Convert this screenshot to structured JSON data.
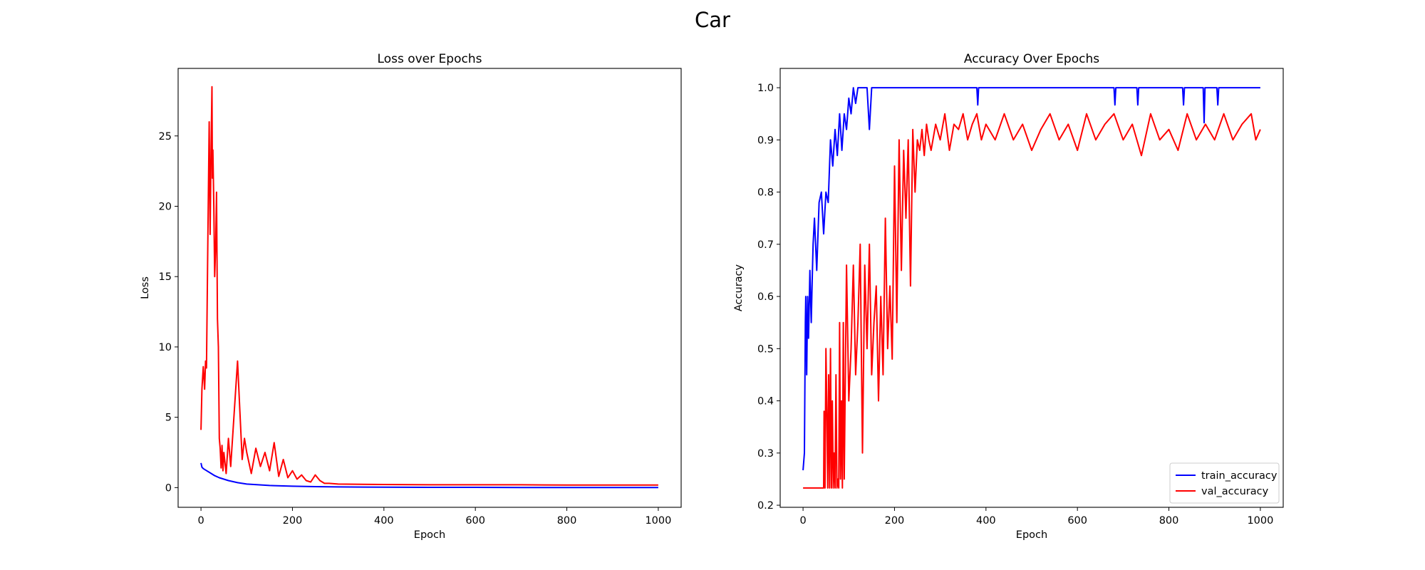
{
  "figure": {
    "suptitle": "Car"
  },
  "chart_data": [
    {
      "type": "line",
      "title": "Loss over Epochs",
      "xlabel": "Epoch",
      "ylabel": "Loss",
      "xlim": [
        -50,
        1050
      ],
      "ylim": [
        -1.4,
        29.8
      ],
      "xticks": [
        0,
        200,
        400,
        600,
        800,
        1000
      ],
      "yticks": [
        0,
        5,
        10,
        15,
        20,
        25
      ],
      "grid": false,
      "legend": null,
      "series": [
        {
          "name": "",
          "color": "#0000ff",
          "x": [
            0,
            2,
            5,
            10,
            20,
            30,
            40,
            50,
            60,
            80,
            100,
            150,
            200,
            250,
            300,
            400,
            500,
            600,
            700,
            800,
            900,
            1000
          ],
          "y": [
            1.75,
            1.45,
            1.35,
            1.25,
            1.05,
            0.85,
            0.7,
            0.6,
            0.5,
            0.35,
            0.25,
            0.15,
            0.1,
            0.07,
            0.05,
            0.03,
            0.02,
            0.02,
            0.01,
            0.01,
            0.01,
            0.01
          ]
        },
        {
          "name": "",
          "color": "#ff0000",
          "x": [
            0,
            2,
            5,
            8,
            10,
            12,
            15,
            18,
            20,
            22,
            24,
            25,
            26,
            28,
            30,
            32,
            34,
            36,
            38,
            40,
            42,
            44,
            46,
            48,
            50,
            55,
            60,
            65,
            70,
            75,
            80,
            85,
            90,
            95,
            100,
            110,
            120,
            130,
            140,
            150,
            160,
            170,
            180,
            190,
            200,
            210,
            220,
            230,
            240,
            250,
            260,
            270,
            280,
            300,
            400,
            500,
            600,
            700,
            800,
            900,
            1000
          ],
          "y": [
            4.1,
            7.0,
            8.6,
            7.0,
            9.0,
            8.5,
            17.5,
            26.0,
            18.0,
            24.0,
            28.5,
            22.0,
            24.0,
            20.0,
            15.0,
            17.0,
            21.0,
            12.0,
            10.0,
            3.5,
            2.8,
            1.4,
            3.0,
            1.2,
            2.5,
            1.0,
            3.5,
            1.5,
            4.0,
            6.5,
            9.0,
            5.5,
            2.0,
            3.5,
            2.5,
            1.0,
            2.8,
            1.5,
            2.5,
            1.2,
            3.2,
            0.8,
            2.0,
            0.7,
            1.2,
            0.6,
            0.9,
            0.5,
            0.4,
            0.9,
            0.5,
            0.3,
            0.3,
            0.25,
            0.22,
            0.2,
            0.2,
            0.2,
            0.18,
            0.18,
            0.18
          ]
        }
      ]
    },
    {
      "type": "line",
      "title": "Accuracy Over Epochs",
      "xlabel": "Epoch",
      "ylabel": "Accuracy",
      "xlim": [
        -50,
        1050
      ],
      "ylim": [
        0.196,
        1.037
      ],
      "xticks": [
        0,
        200,
        400,
        600,
        800,
        1000
      ],
      "yticks": [
        0.2,
        0.3,
        0.4,
        0.5,
        0.6,
        0.7,
        0.8,
        0.9,
        1.0
      ],
      "grid": false,
      "legend": "lower right",
      "series": [
        {
          "name": "train_accuracy",
          "color": "#0000ff",
          "x": [
            0,
            3,
            5,
            6,
            8,
            10,
            12,
            15,
            18,
            20,
            22,
            25,
            30,
            35,
            40,
            45,
            50,
            55,
            60,
            65,
            70,
            75,
            80,
            85,
            90,
            95,
            100,
            105,
            110,
            115,
            120,
            130,
            140,
            145,
            150,
            160,
            200,
            300,
            380,
            382,
            384,
            400,
            500,
            680,
            682,
            684,
            730,
            732,
            734,
            830,
            832,
            834,
            875,
            877,
            879,
            905,
            907,
            909,
            1000
          ],
          "y": [
            0.267,
            0.3,
            0.55,
            0.6,
            0.45,
            0.6,
            0.52,
            0.65,
            0.55,
            0.63,
            0.7,
            0.75,
            0.65,
            0.78,
            0.8,
            0.72,
            0.8,
            0.78,
            0.9,
            0.85,
            0.92,
            0.87,
            0.95,
            0.88,
            0.95,
            0.92,
            0.98,
            0.95,
            1.0,
            0.97,
            1.0,
            1.0,
            1.0,
            0.92,
            1.0,
            1.0,
            1.0,
            1.0,
            1.0,
            0.967,
            1.0,
            1.0,
            1.0,
            1.0,
            0.967,
            1.0,
            1.0,
            0.967,
            1.0,
            1.0,
            0.967,
            1.0,
            1.0,
            0.933,
            1.0,
            1.0,
            0.967,
            1.0,
            1.0
          ]
        },
        {
          "name": "val_accuracy",
          "color": "#ff0000",
          "x": [
            0,
            10,
            20,
            30,
            40,
            45,
            46,
            48,
            50,
            52,
            54,
            56,
            58,
            60,
            62,
            64,
            66,
            68,
            70,
            72,
            74,
            76,
            78,
            80,
            82,
            84,
            86,
            88,
            90,
            95,
            100,
            105,
            110,
            115,
            120,
            125,
            130,
            135,
            140,
            145,
            150,
            155,
            160,
            165,
            170,
            175,
            180,
            185,
            190,
            195,
            200,
            205,
            210,
            215,
            220,
            225,
            230,
            235,
            240,
            245,
            250,
            255,
            260,
            265,
            270,
            275,
            280,
            290,
            300,
            310,
            320,
            330,
            340,
            350,
            360,
            370,
            380,
            390,
            400,
            420,
            440,
            460,
            480,
            500,
            520,
            540,
            560,
            580,
            600,
            620,
            640,
            660,
            680,
            700,
            720,
            740,
            760,
            780,
            800,
            820,
            840,
            860,
            880,
            900,
            920,
            940,
            960,
            980,
            990,
            1000
          ],
          "y": [
            0.233,
            0.233,
            0.233,
            0.233,
            0.233,
            0.233,
            0.38,
            0.233,
            0.5,
            0.38,
            0.233,
            0.45,
            0.233,
            0.5,
            0.233,
            0.4,
            0.233,
            0.3,
            0.233,
            0.45,
            0.233,
            0.25,
            0.233,
            0.55,
            0.25,
            0.4,
            0.233,
            0.55,
            0.25,
            0.66,
            0.4,
            0.5,
            0.66,
            0.45,
            0.55,
            0.7,
            0.3,
            0.66,
            0.5,
            0.7,
            0.45,
            0.55,
            0.62,
            0.4,
            0.6,
            0.45,
            0.75,
            0.5,
            0.62,
            0.48,
            0.85,
            0.55,
            0.9,
            0.65,
            0.88,
            0.75,
            0.9,
            0.62,
            0.92,
            0.8,
            0.9,
            0.88,
            0.92,
            0.87,
            0.93,
            0.9,
            0.88,
            0.93,
            0.9,
            0.95,
            0.88,
            0.93,
            0.92,
            0.95,
            0.9,
            0.93,
            0.95,
            0.9,
            0.93,
            0.9,
            0.95,
            0.9,
            0.93,
            0.88,
            0.92,
            0.95,
            0.9,
            0.93,
            0.88,
            0.95,
            0.9,
            0.93,
            0.95,
            0.9,
            0.93,
            0.87,
            0.95,
            0.9,
            0.92,
            0.88,
            0.95,
            0.9,
            0.93,
            0.9,
            0.95,
            0.9,
            0.93,
            0.95,
            0.9,
            0.92
          ]
        }
      ]
    }
  ]
}
